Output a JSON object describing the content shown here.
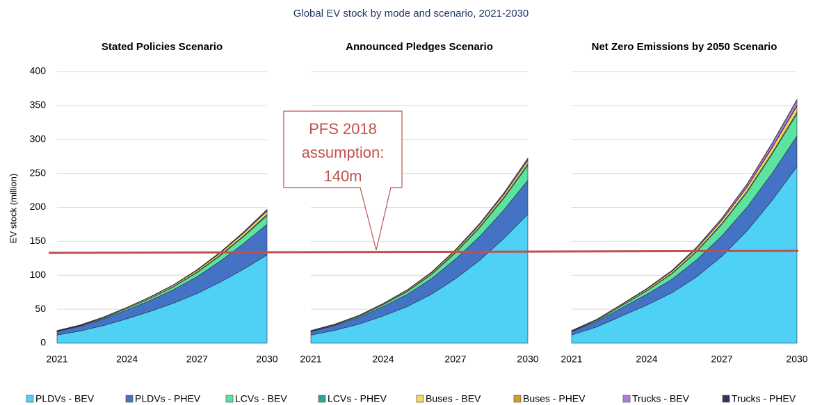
{
  "title": "Global EV stock by mode and scenario, 2021-2030",
  "y_label": "EV stock (million)",
  "annotation": {
    "lines": [
      "PFS 2018",
      "assumption:",
      "140m"
    ],
    "line_values": [
      133,
      136
    ],
    "color": "#c0504d"
  },
  "chart_data": [
    {
      "type": "area",
      "title": "Stated Policies Scenario",
      "x": [
        2021,
        2022,
        2023,
        2024,
        2025,
        2026,
        2027,
        2028,
        2029,
        2030
      ],
      "xlim": [
        2021,
        2030
      ],
      "xticks": [
        2021,
        2024,
        2027,
        2030
      ],
      "ylim": [
        0,
        400
      ],
      "yticks": [
        0,
        50,
        100,
        150,
        200,
        250,
        300,
        350,
        400
      ],
      "grid": true,
      "series": [
        {
          "name": "PLDVs - BEV",
          "color": "#4fd0f5",
          "values": [
            12,
            18,
            26,
            36,
            47,
            59,
            73,
            90,
            109,
            130
          ]
        },
        {
          "name": "PLDVs - PHEV",
          "color": "#4472c4",
          "values": [
            5,
            7,
            10,
            13,
            16,
            20,
            25,
            31,
            38,
            45
          ]
        },
        {
          "name": "LCVs - BEV",
          "color": "#5ce3a0",
          "values": [
            0.5,
            0.8,
            1.2,
            2,
            3,
            4,
            6,
            8,
            10,
            13
          ]
        },
        {
          "name": "LCVs - PHEV",
          "color": "#26a69a",
          "values": [
            0.1,
            0.1,
            0.2,
            0.3,
            0.4,
            0.5,
            0.7,
            0.9,
            1.2,
            1.5
          ]
        },
        {
          "name": "Buses - BEV",
          "color": "#f5d75a",
          "values": [
            0.7,
            0.8,
            1,
            1.2,
            1.5,
            2,
            2.5,
            3,
            4,
            5
          ]
        },
        {
          "name": "Buses - PHEV",
          "color": "#d99a2b",
          "values": [
            0.1,
            0.1,
            0.1,
            0.1,
            0.2,
            0.2,
            0.3,
            0.3,
            0.4,
            0.5
          ]
        },
        {
          "name": "Trucks - BEV",
          "color": "#b07de0",
          "values": [
            0.1,
            0.1,
            0.1,
            0.2,
            0.3,
            0.4,
            0.6,
            0.8,
            1.1,
            1.5
          ]
        },
        {
          "name": "Trucks - PHEV",
          "color": "#3a3060",
          "values": [
            0.1,
            0.1,
            0.1,
            0.1,
            0.1,
            0.2,
            0.2,
            0.3,
            0.4,
            0.5
          ]
        }
      ]
    },
    {
      "type": "area",
      "title": "Announced Pledges Scenario",
      "x": [
        2021,
        2022,
        2023,
        2024,
        2025,
        2026,
        2027,
        2028,
        2029,
        2030
      ],
      "xlim": [
        2021,
        2030
      ],
      "xticks": [
        2021,
        2024,
        2027,
        2030
      ],
      "ylim": [
        0,
        400
      ],
      "yticks": [
        0,
        50,
        100,
        150,
        200,
        250,
        300,
        350,
        400
      ],
      "grid": true,
      "series": [
        {
          "name": "PLDVs - BEV",
          "color": "#4fd0f5",
          "values": [
            12,
            19,
            28,
            40,
            54,
            72,
            95,
            122,
            154,
            190
          ]
        },
        {
          "name": "PLDVs - PHEV",
          "color": "#4472c4",
          "values": [
            5,
            7,
            10,
            14,
            18,
            23,
            29,
            35,
            42,
            50
          ]
        },
        {
          "name": "LCVs - BEV",
          "color": "#5ce3a0",
          "values": [
            0.5,
            1,
            1.5,
            2.5,
            4,
            6,
            9,
            13,
            17,
            22
          ]
        },
        {
          "name": "LCVs - PHEV",
          "color": "#26a69a",
          "values": [
            0.1,
            0.1,
            0.2,
            0.3,
            0.5,
            0.7,
            1,
            1.3,
            1.6,
            2
          ]
        },
        {
          "name": "Buses - BEV",
          "color": "#f5d75a",
          "values": [
            0.7,
            0.8,
            1,
            1.2,
            1.5,
            2,
            2.5,
            3.2,
            4,
            5
          ]
        },
        {
          "name": "Buses - PHEV",
          "color": "#d99a2b",
          "values": [
            0.1,
            0.1,
            0.1,
            0.1,
            0.2,
            0.2,
            0.3,
            0.3,
            0.4,
            0.5
          ]
        },
        {
          "name": "Trucks - BEV",
          "color": "#b07de0",
          "values": [
            0.1,
            0.1,
            0.2,
            0.3,
            0.4,
            0.6,
            0.9,
            1.3,
            1.8,
            2.5
          ]
        },
        {
          "name": "Trucks - PHEV",
          "color": "#3a3060",
          "values": [
            0.1,
            0.1,
            0.1,
            0.1,
            0.1,
            0.2,
            0.2,
            0.3,
            0.4,
            0.5
          ]
        }
      ]
    },
    {
      "type": "area",
      "title": "Net Zero Emissions by 2050 Scenario",
      "x": [
        2021,
        2022,
        2023,
        2024,
        2025,
        2026,
        2027,
        2028,
        2029,
        2030
      ],
      "xlim": [
        2021,
        2030
      ],
      "xticks": [
        2021,
        2024,
        2027,
        2030
      ],
      "ylim": [
        0,
        400
      ],
      "yticks": [
        0,
        50,
        100,
        150,
        200,
        250,
        300,
        350,
        400
      ],
      "grid": true,
      "series": [
        {
          "name": "PLDVs - BEV",
          "color": "#4fd0f5",
          "values": [
            12,
            24,
            40,
            56,
            74,
            98,
            128,
            165,
            210,
            260
          ]
        },
        {
          "name": "PLDVs - PHEV",
          "color": "#4472c4",
          "values": [
            5,
            8,
            12,
            16,
            20,
            25,
            30,
            35,
            40,
            45
          ]
        },
        {
          "name": "LCVs - BEV",
          "color": "#5ce3a0",
          "values": [
            0.5,
            1.5,
            3,
            5,
            8,
            12,
            17,
            22,
            28,
            33
          ]
        },
        {
          "name": "LCVs - PHEV",
          "color": "#26a69a",
          "values": [
            0.1,
            0.2,
            0.3,
            0.5,
            0.7,
            0.9,
            1.2,
            1.5,
            1.8,
            2
          ]
        },
        {
          "name": "Buses - BEV",
          "color": "#f5d75a",
          "values": [
            0.7,
            1,
            1.5,
            2,
            2.8,
            3.6,
            4.6,
            5.8,
            7.3,
            9
          ]
        },
        {
          "name": "Buses - PHEV",
          "color": "#d99a2b",
          "values": [
            0.1,
            0.1,
            0.2,
            0.2,
            0.3,
            0.4,
            0.5,
            0.6,
            0.8,
            1
          ]
        },
        {
          "name": "Trucks - BEV",
          "color": "#b07de0",
          "values": [
            0.1,
            0.2,
            0.4,
            0.7,
            1.1,
            1.7,
            2.6,
            3.8,
            5.6,
            8
          ]
        },
        {
          "name": "Trucks - PHEV",
          "color": "#3a3060",
          "values": [
            0.1,
            0.1,
            0.1,
            0.2,
            0.2,
            0.3,
            0.4,
            0.6,
            0.8,
            1
          ]
        }
      ]
    }
  ]
}
